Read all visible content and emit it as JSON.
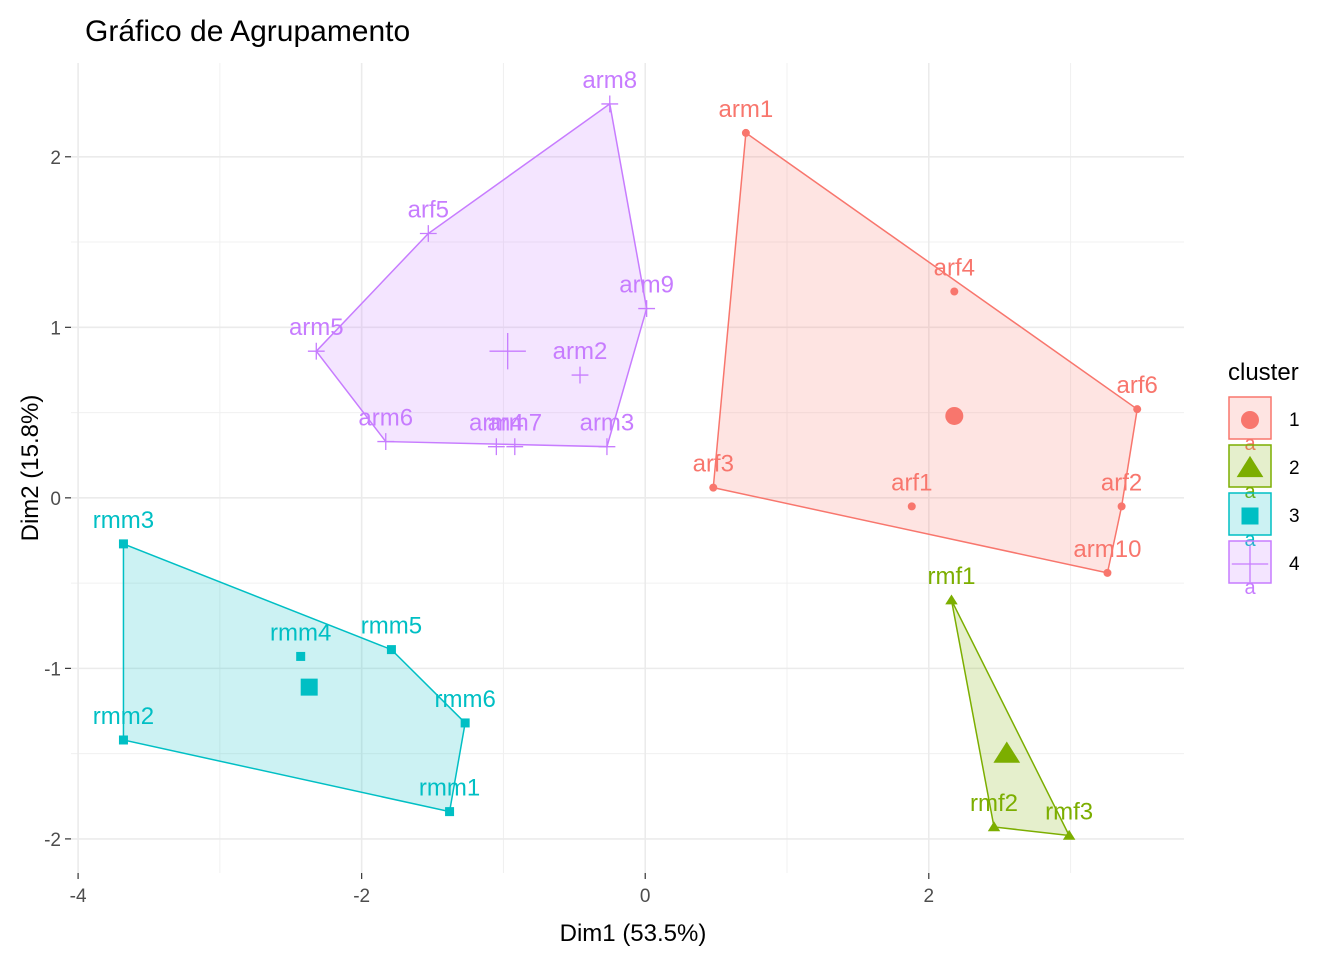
{
  "chart_data": {
    "type": "scatter",
    "title": "Gráfico de Agrupamento",
    "xlabel": "Dim1 (53.5%)",
    "ylabel": "Dim2 (15.8%)",
    "xlim": [
      -4.05,
      3.8
    ],
    "ylim": [
      -2.2,
      2.55
    ],
    "x_ticks": [
      -4,
      -2,
      0,
      2
    ],
    "y_ticks": [
      -2,
      -1,
      0,
      1,
      2
    ],
    "grid": true,
    "legend": {
      "title": "cluster",
      "placement": "right"
    },
    "series": [
      {
        "name": "1",
        "color": "#F8766D",
        "shape": "circle",
        "center": [
          2.18,
          0.48
        ],
        "hull": [
          "arm1",
          "arf6",
          "arf2",
          "arm10",
          "arf3"
        ],
        "points": [
          {
            "label": "arm1",
            "x": 0.71,
            "y": 2.14
          },
          {
            "label": "arf4",
            "x": 2.18,
            "y": 1.21
          },
          {
            "label": "arf6",
            "x": 3.47,
            "y": 0.52
          },
          {
            "label": "arf3",
            "x": 0.48,
            "y": 0.06
          },
          {
            "label": "arf1",
            "x": 1.88,
            "y": -0.05
          },
          {
            "label": "arf2",
            "x": 3.36,
            "y": -0.05
          },
          {
            "label": "arm10",
            "x": 3.26,
            "y": -0.44
          }
        ]
      },
      {
        "name": "2",
        "color": "#7CAE00",
        "shape": "triangle",
        "center": [
          2.55,
          -1.5
        ],
        "hull": [
          "rmf1",
          "rmf3",
          "rmf2"
        ],
        "points": [
          {
            "label": "rmf1",
            "x": 2.16,
            "y": -0.6
          },
          {
            "label": "rmf2",
            "x": 2.46,
            "y": -1.93
          },
          {
            "label": "rmf3",
            "x": 2.99,
            "y": -1.98
          }
        ]
      },
      {
        "name": "3",
        "color": "#00BFC4",
        "shape": "square",
        "center": [
          -2.37,
          -1.11
        ],
        "hull": [
          "rmm3",
          "rmm5",
          "rmm6",
          "rmm1",
          "rmm2"
        ],
        "points": [
          {
            "label": "rmm3",
            "x": -3.68,
            "y": -0.27
          },
          {
            "label": "rmm4",
            "x": -2.43,
            "y": -0.93
          },
          {
            "label": "rmm5",
            "x": -1.79,
            "y": -0.89
          },
          {
            "label": "rmm6",
            "x": -1.27,
            "y": -1.32
          },
          {
            "label": "rmm2",
            "x": -3.68,
            "y": -1.42
          },
          {
            "label": "rmm1",
            "x": -1.38,
            "y": -1.84
          }
        ]
      },
      {
        "name": "4",
        "color": "#C77CFF",
        "shape": "plus",
        "center": [
          -0.97,
          0.86
        ],
        "hull": [
          "arm8",
          "arm9",
          "arm3",
          "arm6",
          "arm5",
          "arf5"
        ],
        "points": [
          {
            "label": "arm8",
            "x": -0.25,
            "y": 2.31
          },
          {
            "label": "arf5",
            "x": -1.53,
            "y": 1.55
          },
          {
            "label": "arm9",
            "x": 0.01,
            "y": 1.11
          },
          {
            "label": "arm5",
            "x": -2.32,
            "y": 0.86
          },
          {
            "label": "arm2",
            "x": -0.46,
            "y": 0.72
          },
          {
            "label": "arm6",
            "x": -1.83,
            "y": 0.33
          },
          {
            "label": "arm4",
            "x": -1.05,
            "y": 0.3
          },
          {
            "label": "arm7",
            "x": -0.92,
            "y": 0.3
          },
          {
            "label": "arm3",
            "x": -0.27,
            "y": 0.3
          }
        ]
      }
    ]
  }
}
